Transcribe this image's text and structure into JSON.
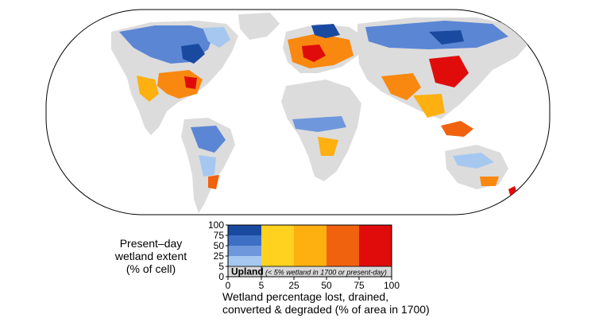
{
  "legend": {
    "y_title_lines": [
      "Present–day",
      "wetland extent",
      "(% of cell)"
    ],
    "y_ticks": [
      "100",
      "75",
      "50",
      "25",
      "5",
      "0"
    ],
    "x_ticks": [
      "0",
      "5",
      "25",
      "50",
      "75",
      "100"
    ],
    "x_title_lines": [
      "Wetland percentage lost, drained,",
      "converted & degraded  (% of area in 1700)"
    ],
    "upland_label": "Upland",
    "upland_note": "(< 5% wetland in 1700 or present-day)",
    "colors": {
      "blue_scale": [
        "#1a4aa0",
        "#3d6fc4",
        "#6f97dc",
        "#a6c8f0"
      ],
      "loss_scale": [
        "#ffd21f",
        "#fdb010",
        "#f98810",
        "#f0620e",
        "#e00c0c"
      ],
      "upland": "#d9d9d9",
      "land": "#dcdcdc",
      "ocean": "#ffffff"
    }
  }
}
